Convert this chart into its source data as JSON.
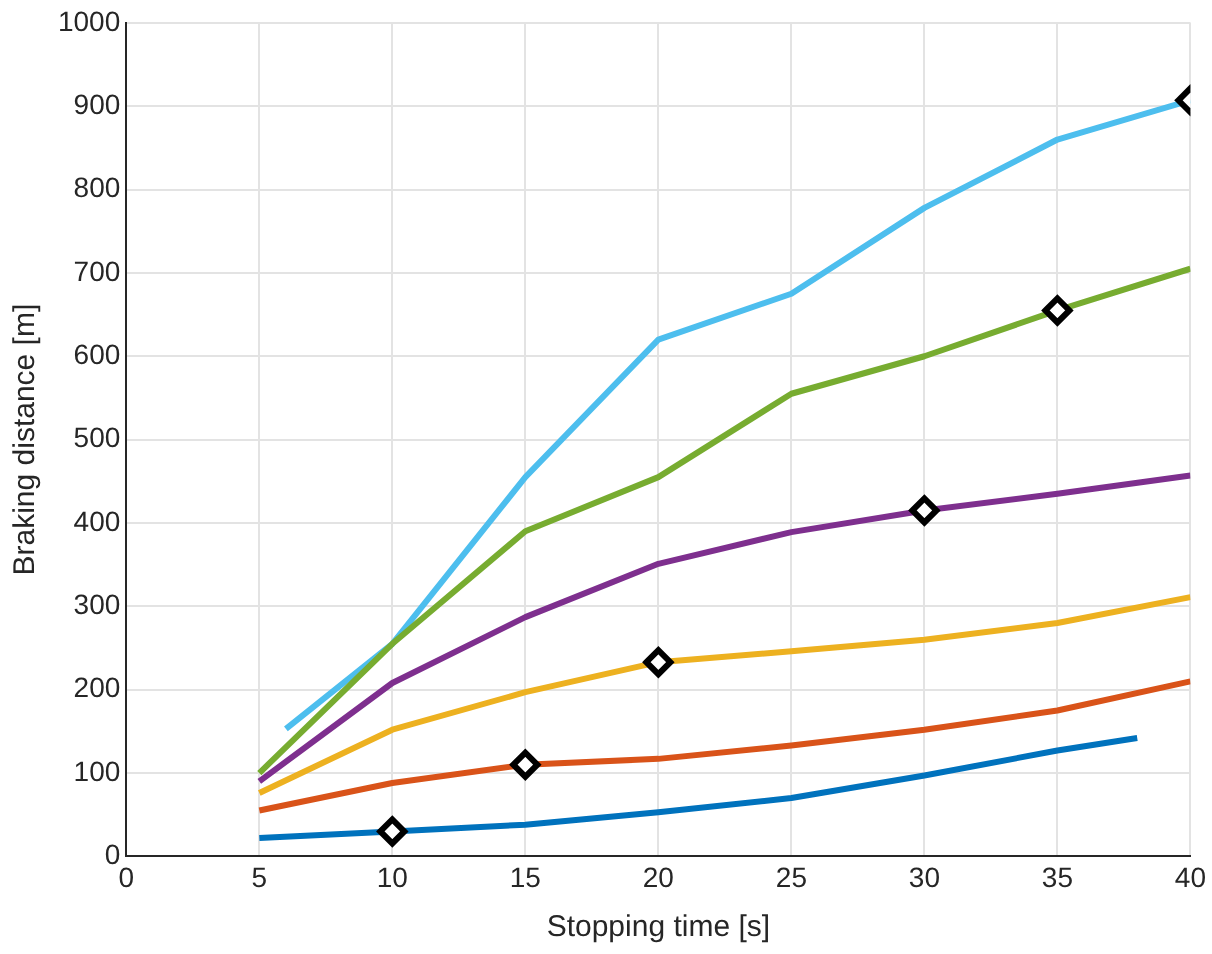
{
  "chart_data": {
    "type": "line",
    "xlabel": "Stopping time [s]",
    "ylabel": "Braking distance [m]",
    "xlim": [
      0,
      40
    ],
    "xticks": [
      0,
      5,
      10,
      15,
      20,
      25,
      30,
      35,
      40
    ],
    "ylim": [
      0,
      1000
    ],
    "yticks": [
      0,
      100,
      200,
      300,
      400,
      500,
      600,
      700,
      800,
      900,
      1000
    ],
    "grid": true,
    "legend": false,
    "marker": "none",
    "line_style": "solid",
    "series": [
      {
        "color": "#0072bd",
        "x": [
          5,
          10,
          15,
          20,
          25,
          30,
          35,
          38
        ],
        "values": [
          22,
          30,
          38,
          53,
          70,
          97,
          127,
          142
        ]
      },
      {
        "color": "#d95319",
        "x": [
          5,
          10,
          15,
          20,
          25,
          30,
          35,
          40
        ],
        "values": [
          55,
          88,
          110,
          117,
          133,
          152,
          175,
          210
        ]
      },
      {
        "color": "#edb120",
        "x": [
          5,
          10,
          15,
          20,
          25,
          30,
          35,
          40
        ],
        "values": [
          76,
          152,
          197,
          233,
          246,
          260,
          280,
          311
        ]
      },
      {
        "color": "#7e2f8e",
        "x": [
          5,
          10,
          15,
          20,
          25,
          30,
          35,
          40
        ],
        "values": [
          90,
          208,
          287,
          351,
          389,
          415,
          435,
          457
        ]
      },
      {
        "color": "#77ac30",
        "x": [
          5,
          10,
          15,
          20,
          25,
          30,
          35,
          40
        ],
        "values": [
          100,
          255,
          390,
          455,
          555,
          600,
          655,
          705
        ]
      },
      {
        "color": "#4dbeee",
        "x": [
          6,
          10,
          15,
          20,
          25,
          30,
          35,
          40
        ],
        "values": [
          153,
          255,
          455,
          620,
          675,
          778,
          860,
          907
        ]
      },
      {
        "type": "scatter",
        "marker": "diamond",
        "color": "#000000",
        "x": [
          10,
          15,
          20,
          30,
          35,
          40
        ],
        "values": [
          30,
          110,
          233,
          415,
          655,
          907
        ]
      }
    ]
  }
}
